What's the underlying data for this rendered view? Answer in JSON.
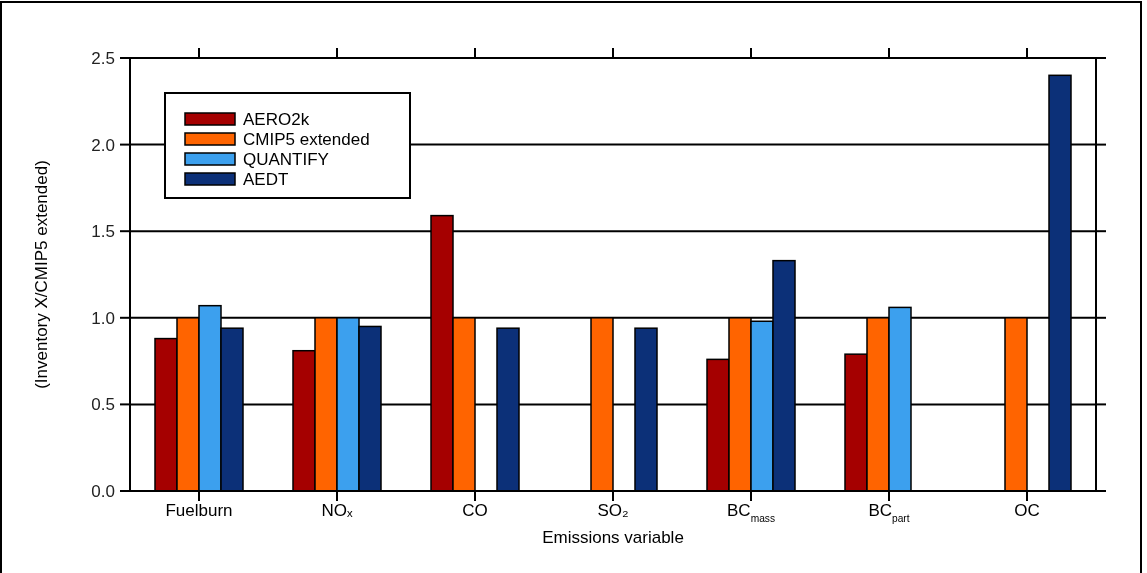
{
  "chart_data": {
    "type": "bar",
    "xlabel": "Emissions variable",
    "ylabel": "(Inventory X/CMIP5 extended)",
    "categories": [
      "Fuelburn",
      "NOₓ",
      "CO",
      "SO₂",
      "BC$_{mass}$",
      "BC$_{part}$",
      "OC"
    ],
    "series": [
      {
        "name": "AERO2k",
        "color": "#a50000",
        "values": [
          0.88,
          0.81,
          1.59,
          null,
          0.76,
          0.79,
          null
        ]
      },
      {
        "name": "CMIP5 extended",
        "color": "#ff6400",
        "values": [
          1.0,
          1.0,
          1.0,
          1.0,
          1.0,
          1.0,
          1.0
        ]
      },
      {
        "name": "QUANTIFY",
        "color": "#3ca0ee",
        "values": [
          1.07,
          1.0,
          null,
          null,
          0.98,
          1.06,
          null
        ]
      },
      {
        "name": "AEDT",
        "color": "#0c3078",
        "values": [
          0.94,
          0.95,
          0.94,
          0.94,
          1.33,
          null,
          2.4
        ]
      }
    ],
    "ylim": [
      0,
      2.5
    ],
    "yticks": [
      {
        "value": 0,
        "label": "0.0"
      },
      {
        "value": 0.5,
        "label": "0.5"
      },
      {
        "value": 1,
        "label": "1.0"
      },
      {
        "value": 1.5,
        "label": "1.5"
      },
      {
        "value": 2,
        "label": "2.0"
      },
      {
        "value": 2.5,
        "label": "2.5"
      }
    ],
    "grid": "y",
    "legend": "top left"
  }
}
